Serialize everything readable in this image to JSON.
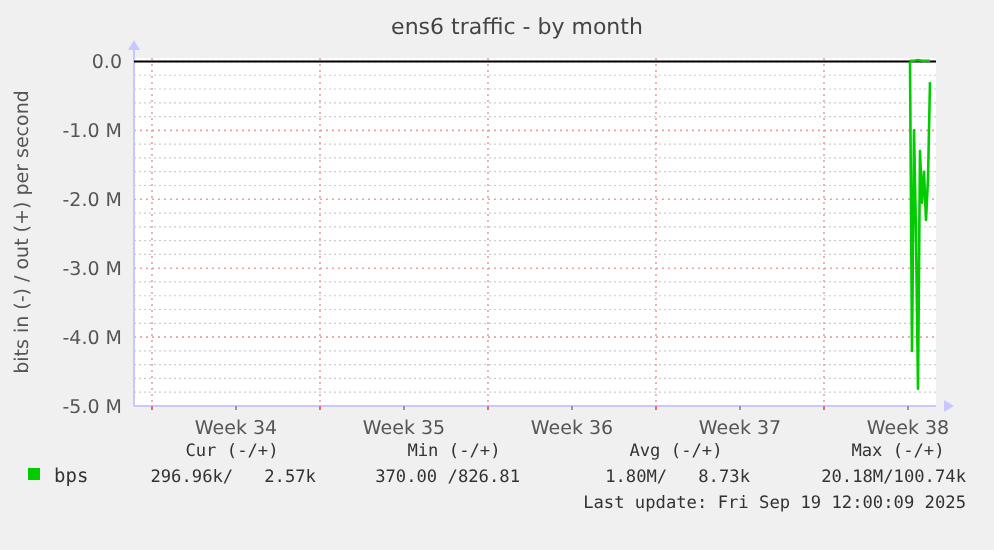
{
  "chart_data": {
    "type": "line",
    "title": "ens6 traffic - by month",
    "ylabel": "bits in (-) / out (+) per second",
    "xlim": [
      "2025-08-17T06:00",
      "2025-09-19T16:00"
    ],
    "xticks": [
      {
        "value": "2025-08-18",
        "label": null
      },
      {
        "value": "2025-08-21T12:00",
        "label": "Week 34"
      },
      {
        "value": "2025-08-25",
        "label": null
      },
      {
        "value": "2025-08-28T12:00",
        "label": "Week 35"
      },
      {
        "value": "2025-09-01",
        "label": null
      },
      {
        "value": "2025-09-04T12:00",
        "label": "Week 36"
      },
      {
        "value": "2025-09-08",
        "label": null
      },
      {
        "value": "2025-09-11T12:00",
        "label": "Week 37"
      },
      {
        "value": "2025-09-15",
        "label": null
      },
      {
        "value": "2025-09-18T12:00",
        "label": "Week 38"
      }
    ],
    "ylim": [
      -5,
      0.05
    ],
    "yticks": [
      {
        "value": -5,
        "label": "-5.0 M"
      },
      {
        "value": -4,
        "label": "-4.0 M"
      },
      {
        "value": -3,
        "label": "-3.0 M"
      },
      {
        "value": -2,
        "label": "-2.0 M"
      },
      {
        "value": -1,
        "label": "-1.0 M"
      },
      {
        "value": 0,
        "label": "0.0"
      }
    ],
    "grid": true,
    "legend": "bottom",
    "line_style": "solid",
    "series": [
      {
        "name": "bps",
        "color": "#00cc00",
        "x": [
          "2025-09-18T14:00",
          "2025-09-18T16:00",
          "2025-09-18T18:00",
          "2025-09-18T20:00",
          "2025-09-18T22:00",
          "2025-09-19T00:00",
          "2025-09-19T02:00",
          "2025-09-19T04:00",
          "2025-09-19T06:00",
          "2025-09-19T08:00",
          "2025-09-19T10:00"
        ],
        "values": [
          0,
          -4.2,
          -1.0,
          -2.5,
          -4.75,
          -1.3,
          -2.05,
          -1.6,
          -2.3,
          -1.7,
          -0.3
        ]
      },
      {
        "color": "#00cc00",
        "x": [
          "2025-09-18T14:00",
          "2025-09-18T18:00",
          "2025-09-18T22:00",
          "2025-09-19T02:00",
          "2025-09-19T06:00",
          "2025-09-19T10:00"
        ],
        "values": [
          0.01,
          0.01,
          0.02,
          0.01,
          0.01,
          0.01
        ]
      }
    ],
    "annotations": [
      "Cur (-/+)",
      "Min (-/+)",
      "Avg (-/+)",
      "Max (-/+)",
      "296.96k/   2.57k",
      "370.00 /826.81",
      "1.80M/   8.73k",
      "20.18M/100.74k",
      "Last update: Fri Sep 19 12:00:09 2025"
    ]
  }
}
